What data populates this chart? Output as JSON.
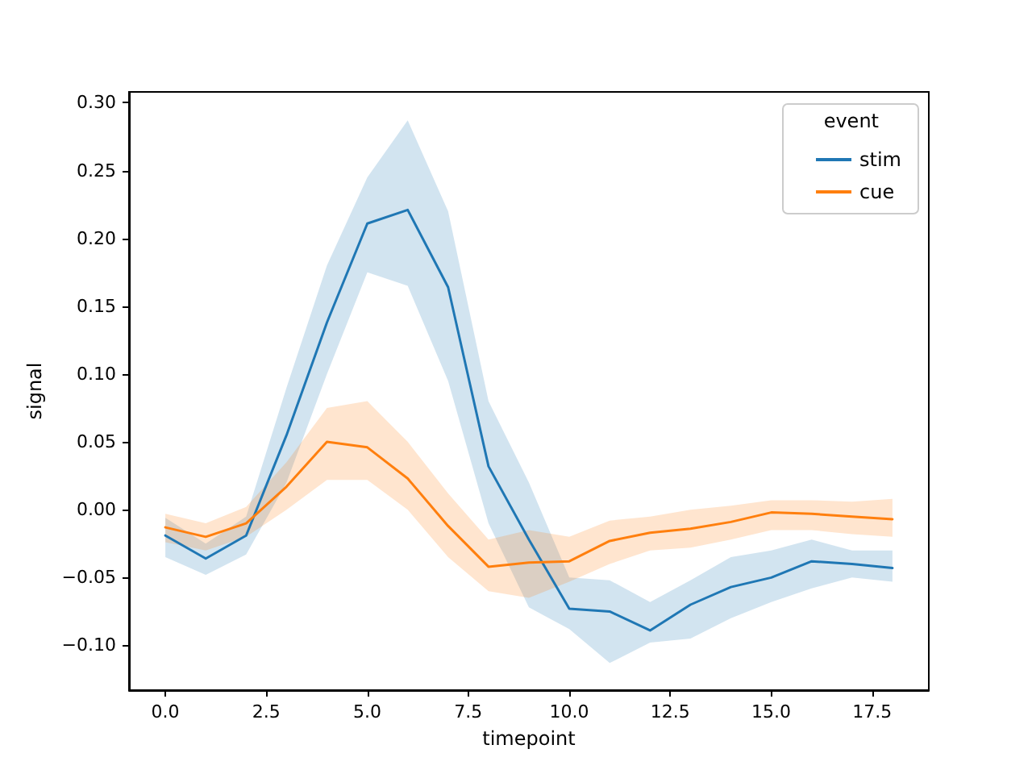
{
  "chart_data": {
    "type": "line",
    "xlabel": "timepoint",
    "ylabel": "signal",
    "legend_title": "event",
    "legend": "top right",
    "grid": false,
    "marker": "none",
    "line_style": "solid",
    "x": [
      0,
      1,
      2,
      3,
      4,
      5,
      6,
      7,
      8,
      9,
      10,
      11,
      12,
      13,
      14,
      15,
      16,
      17,
      18
    ],
    "series": [
      {
        "name": "stim",
        "color": "#1f77b4",
        "values": [
          -0.019,
          -0.036,
          -0.019,
          0.055,
          0.138,
          0.211,
          0.221,
          0.164,
          0.032,
          -0.022,
          -0.073,
          -0.075,
          -0.089,
          -0.07,
          -0.057,
          -0.05,
          -0.038,
          -0.04,
          -0.043
        ],
        "lower": [
          -0.035,
          -0.048,
          -0.033,
          0.02,
          0.1,
          0.175,
          0.165,
          0.095,
          -0.01,
          -0.072,
          -0.088,
          -0.113,
          -0.098,
          -0.095,
          -0.08,
          -0.068,
          -0.058,
          -0.05,
          -0.053
        ],
        "upper": [
          -0.006,
          -0.025,
          -0.005,
          0.09,
          0.18,
          0.245,
          0.287,
          0.22,
          0.08,
          0.02,
          -0.05,
          -0.052,
          -0.068,
          -0.052,
          -0.035,
          -0.03,
          -0.022,
          -0.03,
          -0.03
        ]
      },
      {
        "name": "cue",
        "color": "#ff7f0e",
        "values": [
          -0.013,
          -0.02,
          -0.01,
          0.017,
          0.05,
          0.046,
          0.023,
          -0.012,
          -0.042,
          -0.039,
          -0.038,
          -0.023,
          -0.017,
          -0.014,
          -0.009,
          -0.002,
          -0.003,
          -0.005,
          -0.007
        ],
        "lower": [
          -0.024,
          -0.03,
          -0.02,
          0.0,
          0.022,
          0.022,
          0.0,
          -0.035,
          -0.06,
          -0.065,
          -0.053,
          -0.04,
          -0.03,
          -0.028,
          -0.022,
          -0.015,
          -0.015,
          -0.018,
          -0.02
        ],
        "upper": [
          -0.003,
          -0.01,
          0.002,
          0.035,
          0.075,
          0.08,
          0.05,
          0.012,
          -0.022,
          -0.015,
          -0.02,
          -0.008,
          -0.005,
          0.0,
          0.003,
          0.007,
          0.007,
          0.006,
          0.008
        ]
      }
    ],
    "xlim": [
      -0.9,
      18.9
    ],
    "xticks": [
      {
        "value": 0,
        "label": "0.0"
      },
      {
        "value": 2.5,
        "label": "2.5"
      },
      {
        "value": 5,
        "label": "5.0"
      },
      {
        "value": 7.5,
        "label": "7.5"
      },
      {
        "value": 10,
        "label": "10.0"
      },
      {
        "value": 12.5,
        "label": "12.5"
      },
      {
        "value": 15,
        "label": "15.0"
      },
      {
        "value": 17.5,
        "label": "17.5"
      }
    ],
    "ylim": [
      -0.133,
      0.308
    ],
    "yticks": [
      {
        "value": -0.1,
        "label": "−0.10"
      },
      {
        "value": -0.05,
        "label": "−0.05"
      },
      {
        "value": 0,
        "label": "0.00"
      },
      {
        "value": 0.05,
        "label": "0.05"
      },
      {
        "value": 0.1,
        "label": "0.10"
      },
      {
        "value": 0.15,
        "label": "0.15"
      },
      {
        "value": 0.2,
        "label": "0.20"
      },
      {
        "value": 0.25,
        "label": "0.25"
      },
      {
        "value": 0.3,
        "label": "0.30"
      }
    ]
  }
}
